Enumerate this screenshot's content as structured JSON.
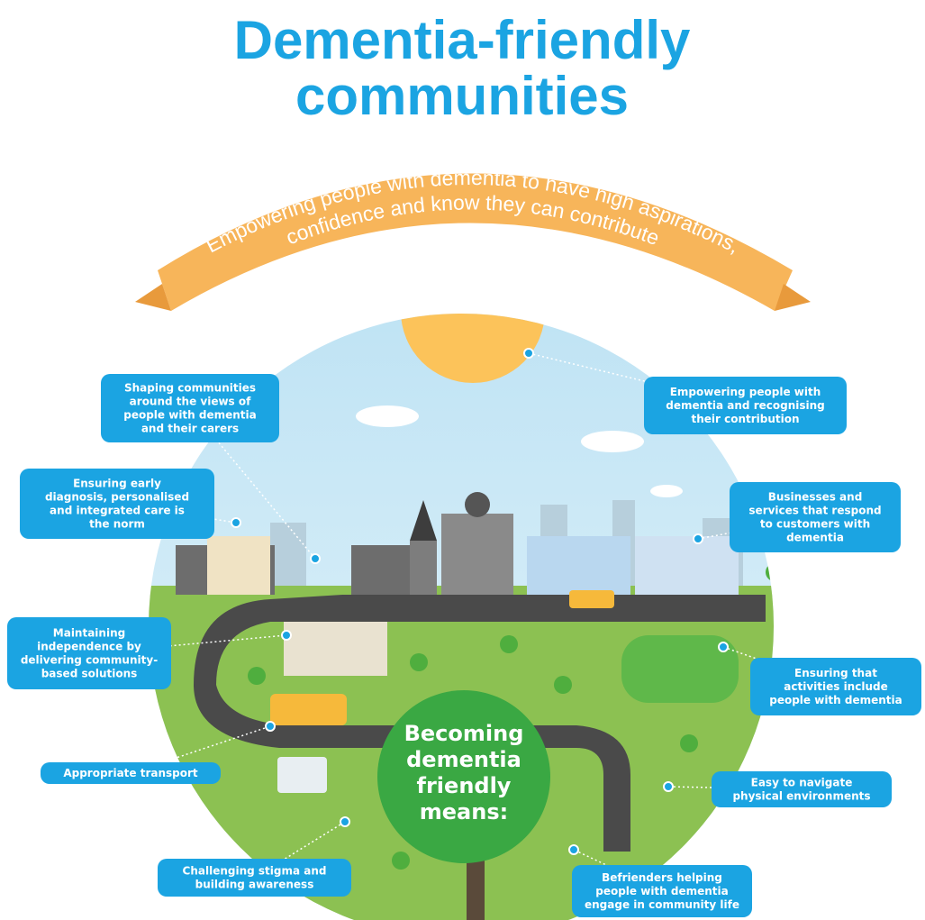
{
  "title": [
    "Dementia-friendly",
    "communities"
  ],
  "banner": [
    "Empowering people with dementia to have high aspirations,",
    "confidence and know they can contribute"
  ],
  "center": [
    "Becoming",
    "dementia",
    "friendly",
    "means:"
  ],
  "callouts": [
    {
      "lines": [
        "Shaping communities",
        "around the views of",
        "people with dementia",
        "and their carers"
      ]
    },
    {
      "lines": [
        "Ensuring early",
        "diagnosis, personalised",
        "and integrated care is",
        "the norm"
      ]
    },
    {
      "lines": [
        "Maintaining",
        "independence by",
        "delivering community-",
        "based solutions"
      ]
    },
    {
      "lines": [
        "Appropriate transport"
      ]
    },
    {
      "lines": [
        "Challenging stigma and",
        "building awareness"
      ]
    },
    {
      "lines": [
        "Empowering people with",
        "dementia and recognising",
        "their contribution"
      ]
    },
    {
      "lines": [
        "Businesses and",
        "services that respond",
        "to customers with",
        "dementia"
      ]
    },
    {
      "lines": [
        "Ensuring that",
        "activities include",
        "people with dementia"
      ]
    },
    {
      "lines": [
        "Easy to navigate",
        "physical environments"
      ]
    },
    {
      "lines": [
        "Befrienders helping",
        "people with dementia",
        "engage in community life"
      ]
    }
  ]
}
